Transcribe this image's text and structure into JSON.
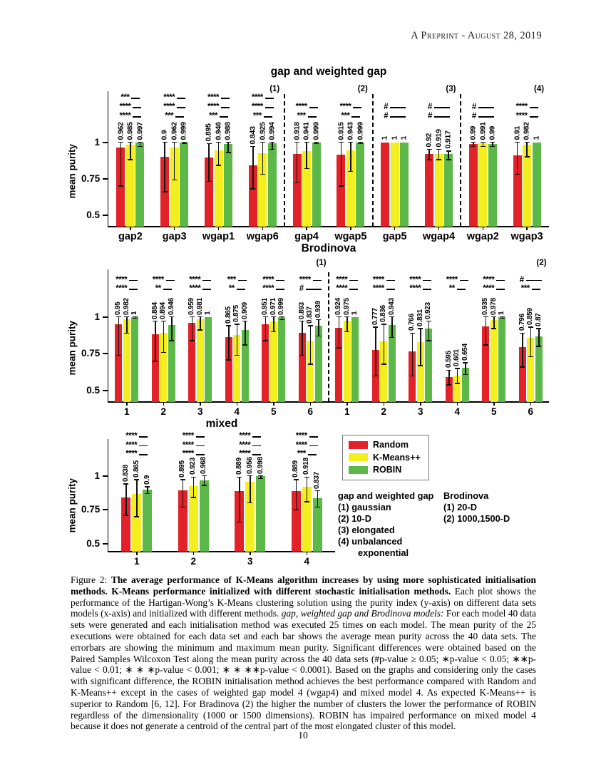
{
  "page": {
    "header": "A Preprint - August 28, 2019",
    "page_number": "10"
  },
  "colors": {
    "random": "#e32128",
    "kmeanspp": "#f3ee1e",
    "robin": "#5cb848",
    "axis": "#000000",
    "errorbar": "#111111"
  },
  "legend": {
    "items": [
      {
        "name": "random",
        "label": "Random"
      },
      {
        "name": "kmeanspp",
        "label": "K-Means++"
      },
      {
        "name": "robin",
        "label": "ROBIN"
      }
    ]
  },
  "notes": {
    "gap": {
      "title": "gap and weighted gap",
      "items": [
        "(1) gaussian",
        "(2) 10-D",
        "(3) elongated",
        "(4) unbalanced",
        "exponential"
      ]
    },
    "brodinova": {
      "title": "Brodinova",
      "items": [
        "(1) 20-D",
        "(2) 1000,1500-D"
      ]
    }
  },
  "caption": {
    "segments": [
      {
        "t": "Figure 2: ",
        "s": "n"
      },
      {
        "t": "The average performance of K-Means algorithm increases by using more sophisticated initialisation methods. K-Means performance initialized with different stochastic initialisation methods.",
        "s": "b"
      },
      {
        "t": " Each plot shows the performance of the Hartigan-Wong’s K-Means clustering solution using the purity index (y-axis) on different data sets models (x-axis) and initialized with different methods. ",
        "s": "n"
      },
      {
        "t": "gap, weighted gap and Brodinova models:",
        "s": "i"
      },
      {
        "t": " For each model 40 data sets were generated and each initialisation method was executed 25 times on each model. The mean purity of the 25 executions were obtained for each data set and each bar shows the average mean purity across the 40 data sets. The errorbars are showing the minimum and maximum mean purity. Significant differences were obtained based on the Paired Samples Wilcoxon Test along the mean purity across the 40 data sets (#p-value ≥ 0.05; ∗p-value < 0.05; ∗∗p-value < 0.01; ∗ ∗ ∗p-value < 0.001; ∗ ∗ ∗∗p-value < 0.0001). Based on the graphs and considering only the cases with significant difference, the ROBIN initialisation method achieves the best performance compared with Random and K-Means++ except in the cases of weighted gap model 4 (wgap4) and mixed model 4. As expected K-Means++ is superior to Random [6, 12]. For Bradinova (2) the higher the number of clusters the lower the performance of ROBIN regardless of the dimensionality (1000 or 1500 dimensions). ROBIN has impaired performance on mixed model 4 because it does not generate a centroid of the central part of the most elongated cluster of this model.",
        "s": "n"
      }
    ]
  },
  "chart_data": [
    {
      "id": "gap-weighted-gap",
      "type": "bar",
      "title": "gap and weighted gap",
      "ylabel": "mean purity",
      "yticks": [
        {
          "v": 1,
          "t": "1"
        },
        {
          "v": 0.75,
          "t": "0.75"
        },
        {
          "v": 0.5,
          "t": "0.5"
        }
      ],
      "ylim": [
        0.42,
        1.35
      ],
      "series": [
        "Random",
        "K-Means++",
        "ROBIN"
      ],
      "legend_position": "none",
      "grid": false,
      "categories": [
        "gap2",
        "gap3",
        "wgap1",
        "wgap6",
        "gap4",
        "wgap5",
        "gap5",
        "wgap4",
        "wgap2",
        "wgap3"
      ],
      "values": [
        [
          0.962,
          0.985,
          0.997
        ],
        [
          0.9,
          0.962,
          0.999
        ],
        [
          0.895,
          0.946,
          0.988
        ],
        [
          0.843,
          0.925,
          0.994
        ],
        [
          0.918,
          0.941,
          0.999
        ],
        [
          0.915,
          0.943,
          0.999
        ],
        [
          1,
          1,
          1
        ],
        [
          0.92,
          0.919,
          0.917
        ],
        [
          0.99,
          0.991,
          0.99
        ],
        [
          0.91,
          0.982,
          1
        ]
      ],
      "value_labels": [
        [
          "0.962",
          "0.985",
          "0.997"
        ],
        [
          "0.9",
          "0.962",
          "0.999"
        ],
        [
          "0.895",
          "0.946",
          "0.988"
        ],
        [
          "0.843",
          "0.925",
          "0.994"
        ],
        [
          "0.918",
          "0.941",
          "0.999"
        ],
        [
          "0.915",
          "0.943",
          "0.999"
        ],
        [
          "1",
          "1",
          "1"
        ],
        [
          "0.92",
          "0.919",
          "0.917"
        ],
        [
          "0.99",
          "0.991",
          "0.99"
        ],
        [
          "0.91",
          "0.982",
          "1"
        ]
      ],
      "errorbars": [
        [
          [
            0.7,
            1
          ],
          [
            0.88,
            1
          ],
          [
            0.97,
            1
          ]
        ],
        [
          [
            0.66,
            1
          ],
          [
            0.74,
            1
          ],
          [
            0.99,
            1
          ]
        ],
        [
          [
            0.73,
            0.99
          ],
          [
            0.84,
            1
          ],
          [
            0.93,
            1
          ]
        ],
        [
          [
            0.68,
            0.97
          ],
          [
            0.78,
            1
          ],
          [
            0.95,
            1
          ]
        ],
        [
          [
            0.72,
            1
          ],
          [
            0.82,
            1
          ],
          [
            0.99,
            1
          ]
        ],
        [
          [
            0.7,
            1
          ],
          [
            0.8,
            1
          ],
          [
            0.99,
            1
          ]
        ],
        [
          [
            1,
            1
          ],
          [
            1,
            1
          ],
          [
            1,
            1
          ]
        ],
        [
          [
            0.88,
            0.95
          ],
          [
            0.88,
            0.95
          ],
          [
            0.88,
            0.94
          ]
        ],
        [
          [
            0.97,
            1
          ],
          [
            0.97,
            1
          ],
          [
            0.97,
            1
          ]
        ],
        [
          [
            0.78,
            1
          ],
          [
            0.9,
            1
          ],
          [
            1,
            1
          ]
        ]
      ],
      "sig": [
        [
          "***",
          "****",
          "****"
        ],
        [
          "****",
          "****",
          "***"
        ],
        [
          "****",
          "****",
          "***"
        ],
        [
          "****",
          "****",
          "***"
        ],
        [
          "****",
          "***"
        ],
        [
          "****",
          "***"
        ],
        [
          "#",
          "#"
        ],
        [
          "#",
          "#"
        ],
        [
          "#",
          "#"
        ],
        [
          "****",
          "****"
        ]
      ],
      "dividers_after": [
        3,
        5,
        7
      ],
      "group_labels": [
        {
          "text": "(1)",
          "category_index": 3
        },
        {
          "text": "(2)",
          "category_index": 5
        },
        {
          "text": "(3)",
          "category_index": 7
        },
        {
          "text": "(4)",
          "category_index": 9
        }
      ]
    },
    {
      "id": "brodinova",
      "type": "bar",
      "title": "Brodinova",
      "ylabel": "mean purity",
      "yticks": [
        {
          "v": 1,
          "t": "1"
        },
        {
          "v": 0.75,
          "t": "0.75"
        },
        {
          "v": 0.5,
          "t": "0.5"
        }
      ],
      "ylim": [
        0.425,
        1.32
      ],
      "series": [
        "Random",
        "K-Means++",
        "ROBIN"
      ],
      "legend_position": "none",
      "grid": false,
      "categories": [
        "1",
        "2",
        "3",
        "4",
        "5",
        "6",
        "1",
        "2",
        "3",
        "4",
        "5",
        "6"
      ],
      "values": [
        [
          0.95,
          0.982,
          1
        ],
        [
          0.884,
          0.894,
          0.946
        ],
        [
          0.959,
          0.981,
          1
        ],
        [
          0.865,
          0.875,
          0.909
        ],
        [
          0.951,
          0.971,
          0.999
        ],
        [
          0.893,
          0.837,
          0.939
        ],
        [
          0.924,
          0.975,
          1
        ],
        [
          0.777,
          0.836,
          0.943
        ],
        [
          0.766,
          0.831,
          0.923
        ],
        [
          0.595,
          0.601,
          0.654
        ],
        [
          0.935,
          0.978,
          1
        ],
        [
          0.796,
          0.859,
          0.87
        ]
      ],
      "value_labels": [
        [
          "0.95",
          "0.982",
          "1"
        ],
        [
          "0.884",
          "0.894",
          "0.946"
        ],
        [
          "0.959",
          "0.981",
          "1"
        ],
        [
          "0.865",
          "0.875",
          "0.909"
        ],
        [
          "0.951",
          "0.971",
          "0.999"
        ],
        [
          "0.893",
          "0.837",
          "0.939"
        ],
        [
          "0.924",
          "0.975",
          "1"
        ],
        [
          "0.777",
          "0.836",
          "0.943"
        ],
        [
          "0.766",
          "0.831",
          "0.923"
        ],
        [
          "0.595",
          "0.601",
          "0.654"
        ],
        [
          "0.935",
          "0.978",
          "1"
        ],
        [
          "0.796",
          "0.859",
          "0.87"
        ]
      ],
      "errorbars": [
        [
          [
            0.74,
            1
          ],
          [
            0.89,
            1
          ],
          [
            0.99,
            1
          ]
        ],
        [
          [
            0.7,
            0.97
          ],
          [
            0.76,
            0.97
          ],
          [
            0.84,
            1
          ]
        ],
        [
          [
            0.84,
            1
          ],
          [
            0.91,
            1
          ],
          [
            1,
            1
          ]
        ],
        [
          [
            0.71,
            0.94
          ],
          [
            0.74,
            0.95
          ],
          [
            0.81,
            0.97
          ]
        ],
        [
          [
            0.84,
            1
          ],
          [
            0.9,
            1
          ],
          [
            0.98,
            1
          ]
        ],
        [
          [
            0.74,
            0.97
          ],
          [
            0.68,
            0.94
          ],
          [
            0.87,
            0.98
          ]
        ],
        [
          [
            0.79,
            1
          ],
          [
            0.9,
            1
          ],
          [
            1,
            1
          ]
        ],
        [
          [
            0.6,
            0.93
          ],
          [
            0.68,
            0.95
          ],
          [
            0.86,
            1
          ]
        ],
        [
          [
            0.6,
            0.89
          ],
          [
            0.67,
            0.92
          ],
          [
            0.84,
            0.97
          ]
        ],
        [
          [
            0.54,
            0.64
          ],
          [
            0.55,
            0.65
          ],
          [
            0.61,
            0.69
          ]
        ],
        [
          [
            0.81,
            1
          ],
          [
            0.92,
            1
          ],
          [
            0.99,
            1
          ]
        ],
        [
          [
            0.66,
            0.89
          ],
          [
            0.73,
            0.93
          ],
          [
            0.8,
            0.92
          ]
        ]
      ],
      "sig": [
        [
          "****",
          "****"
        ],
        [
          "****",
          "**"
        ],
        [
          "****",
          "****"
        ],
        [
          "***",
          "**"
        ],
        [
          "****",
          "****"
        ],
        [
          "****",
          "#"
        ],
        [
          "****",
          "****"
        ],
        [
          "****",
          "****"
        ],
        [
          "****",
          "****"
        ],
        [
          "****",
          "**"
        ],
        [
          "****",
          "****"
        ],
        [
          "#",
          "***"
        ]
      ],
      "dividers_after": [
        5
      ],
      "group_labels": [
        {
          "text": "(1)",
          "category_index": 5
        },
        {
          "text": "(2)",
          "category_index": 11
        }
      ]
    },
    {
      "id": "mixed",
      "type": "bar",
      "title": "mixed",
      "ylabel": "mean purity",
      "yticks": [
        {
          "v": 1,
          "t": "1"
        },
        {
          "v": 0.75,
          "t": "0.75"
        },
        {
          "v": 0.5,
          "t": "0.5"
        }
      ],
      "ylim": [
        0.442,
        1.27
      ],
      "series": [
        "Random",
        "K-Means++",
        "ROBIN"
      ],
      "legend_position": "right",
      "grid": false,
      "categories": [
        "1",
        "2",
        "3",
        "4"
      ],
      "values": [
        [
          0.838,
          0.865,
          0.9
        ],
        [
          0.895,
          0.923,
          0.968
        ],
        [
          0.889,
          0.956,
          0.998
        ],
        [
          0.889,
          0.918,
          0.837
        ]
      ],
      "value_labels": [
        [
          "0.838",
          "0.865",
          "0.9"
        ],
        [
          "0.895",
          "0.923",
          "0.968"
        ],
        [
          "0.889",
          "0.956",
          "0.998"
        ],
        [
          "0.889",
          "0.918",
          "0.837"
        ]
      ],
      "errorbars": [
        [
          [
            0.71,
            0.94
          ],
          [
            0.7,
            0.97
          ],
          [
            0.87,
            0.92
          ]
        ],
        [
          [
            0.77,
            0.97
          ],
          [
            0.84,
            0.99
          ],
          [
            0.93,
            1
          ]
        ],
        [
          [
            0.66,
            0.99
          ],
          [
            0.8,
            1
          ],
          [
            0.98,
            1
          ]
        ],
        [
          [
            0.75,
            0.97
          ],
          [
            0.81,
            0.99
          ],
          [
            0.77,
            0.89
          ]
        ]
      ],
      "sig": [
        [
          "****",
          "****",
          "****"
        ],
        [
          "****",
          "****",
          "****"
        ],
        [
          "****",
          "****",
          "****"
        ],
        [
          "****",
          "****",
          "***"
        ]
      ],
      "dividers_after": [],
      "group_labels": []
    }
  ]
}
